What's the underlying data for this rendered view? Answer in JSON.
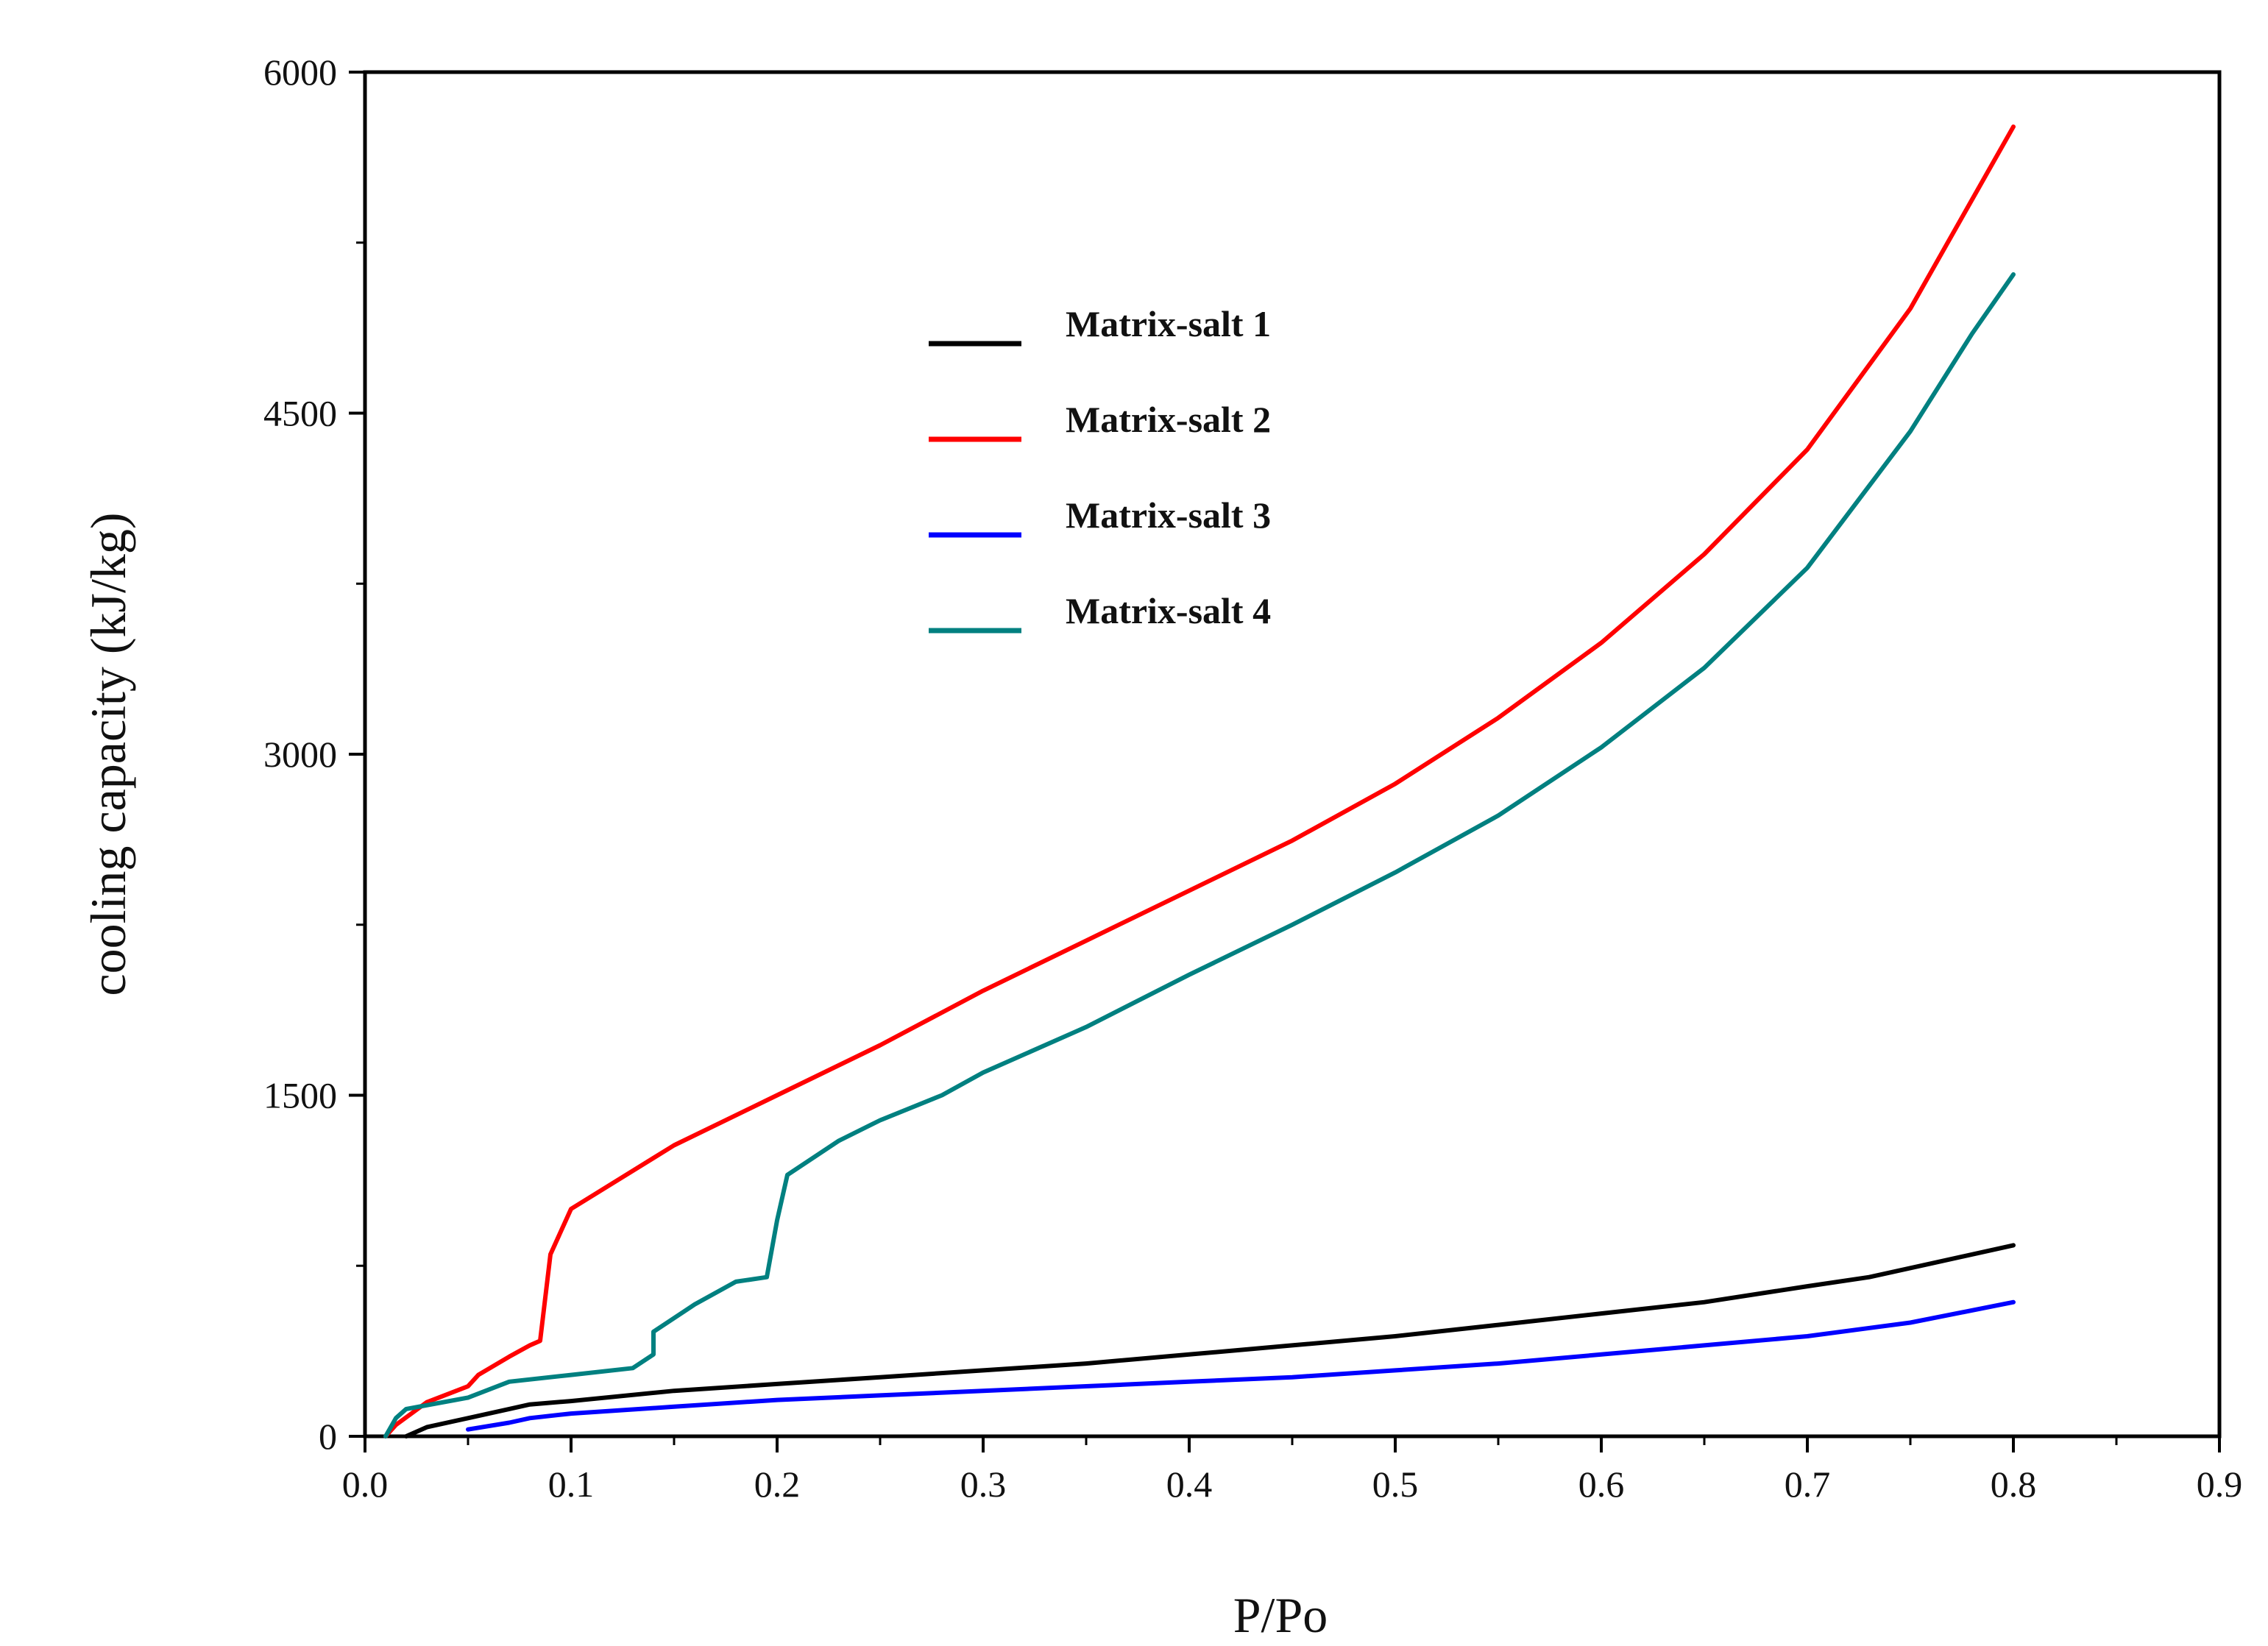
{
  "chart_data": {
    "type": "line",
    "title": "",
    "xlabel": "P/Po",
    "ylabel": "cooling capacity (kJ/kg)",
    "xlim": [
      0.0,
      0.9
    ],
    "ylim": [
      0,
      6000
    ],
    "x_ticks": [
      "0.0",
      "0.1",
      "0.2",
      "0.3",
      "0.4",
      "0.5",
      "0.6",
      "0.7",
      "0.8",
      "0.9"
    ],
    "y_ticks": [
      "0",
      "1500",
      "3000",
      "4500",
      "6000"
    ],
    "legend_position": "upper-middle",
    "series": [
      {
        "name": "Matrix-salt 1",
        "color": "#000000",
        "points": [
          [
            0.02,
            0
          ],
          [
            0.03,
            40
          ],
          [
            0.05,
            80
          ],
          [
            0.07,
            120
          ],
          [
            0.08,
            140
          ],
          [
            0.1,
            155
          ],
          [
            0.15,
            200
          ],
          [
            0.2,
            230
          ],
          [
            0.25,
            260
          ],
          [
            0.3,
            290
          ],
          [
            0.35,
            320
          ],
          [
            0.4,
            360
          ],
          [
            0.45,
            400
          ],
          [
            0.5,
            440
          ],
          [
            0.55,
            490
          ],
          [
            0.6,
            540
          ],
          [
            0.65,
            590
          ],
          [
            0.7,
            660
          ],
          [
            0.73,
            700
          ],
          [
            0.76,
            760
          ],
          [
            0.8,
            840
          ]
        ]
      },
      {
        "name": "Matrix-salt 2",
        "color": "#ff0000",
        "points": [
          [
            0.01,
            0
          ],
          [
            0.015,
            50
          ],
          [
            0.03,
            150
          ],
          [
            0.05,
            220
          ],
          [
            0.055,
            270
          ],
          [
            0.07,
            350
          ],
          [
            0.08,
            400
          ],
          [
            0.085,
            420
          ],
          [
            0.09,
            800
          ],
          [
            0.1,
            1000
          ],
          [
            0.15,
            1280
          ],
          [
            0.2,
            1500
          ],
          [
            0.25,
            1720
          ],
          [
            0.3,
            1960
          ],
          [
            0.35,
            2180
          ],
          [
            0.4,
            2400
          ],
          [
            0.45,
            2620
          ],
          [
            0.5,
            2870
          ],
          [
            0.55,
            3160
          ],
          [
            0.6,
            3490
          ],
          [
            0.65,
            3880
          ],
          [
            0.7,
            4340
          ],
          [
            0.75,
            4960
          ],
          [
            0.78,
            5440
          ],
          [
            0.8,
            5760
          ]
        ]
      },
      {
        "name": "Matrix-salt 3",
        "color": "#0000ff",
        "points": [
          [
            0.05,
            30
          ],
          [
            0.07,
            60
          ],
          [
            0.08,
            80
          ],
          [
            0.1,
            100
          ],
          [
            0.15,
            130
          ],
          [
            0.2,
            160
          ],
          [
            0.25,
            180
          ],
          [
            0.3,
            200
          ],
          [
            0.35,
            220
          ],
          [
            0.4,
            240
          ],
          [
            0.45,
            260
          ],
          [
            0.5,
            290
          ],
          [
            0.55,
            320
          ],
          [
            0.6,
            360
          ],
          [
            0.65,
            400
          ],
          [
            0.7,
            440
          ],
          [
            0.75,
            500
          ],
          [
            0.8,
            590
          ]
        ]
      },
      {
        "name": "Matrix-salt 4",
        "color": "#008080",
        "points": [
          [
            0.01,
            0
          ],
          [
            0.015,
            80
          ],
          [
            0.02,
            120
          ],
          [
            0.05,
            170
          ],
          [
            0.07,
            240
          ],
          [
            0.1,
            270
          ],
          [
            0.13,
            300
          ],
          [
            0.14,
            360
          ],
          [
            0.14,
            460
          ],
          [
            0.16,
            580
          ],
          [
            0.18,
            680
          ],
          [
            0.195,
            700
          ],
          [
            0.2,
            950
          ],
          [
            0.205,
            1150
          ],
          [
            0.23,
            1300
          ],
          [
            0.25,
            1390
          ],
          [
            0.28,
            1500
          ],
          [
            0.3,
            1600
          ],
          [
            0.35,
            1800
          ],
          [
            0.4,
            2030
          ],
          [
            0.45,
            2250
          ],
          [
            0.5,
            2480
          ],
          [
            0.55,
            2730
          ],
          [
            0.6,
            3030
          ],
          [
            0.65,
            3380
          ],
          [
            0.7,
            3820
          ],
          [
            0.75,
            4420
          ],
          [
            0.78,
            4850
          ],
          [
            0.8,
            5110
          ]
        ]
      }
    ]
  }
}
